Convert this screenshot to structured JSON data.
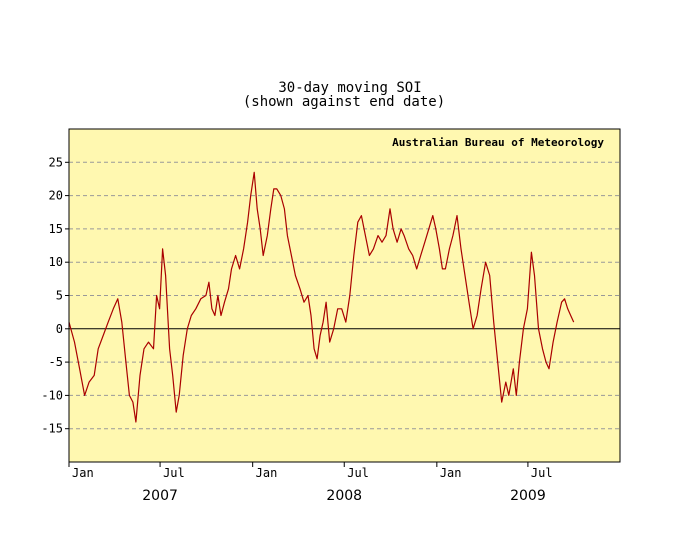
{
  "chart_data": {
    "type": "line",
    "title": "30-day moving SOI",
    "subtitle": "(shown against end date)",
    "credit": "Australian Bureau of Meteorology",
    "xlabel": "",
    "ylabel": "",
    "x_range": [
      "2007-01-01",
      "2009-12-31"
    ],
    "ylim": [
      -20,
      30
    ],
    "y_ticks": [
      25,
      20,
      15,
      10,
      5,
      0,
      -5,
      -10,
      -15
    ],
    "x_ticks": [
      {
        "label": "Jan",
        "date": "2007-01-01"
      },
      {
        "label": "Jul",
        "date": "2007-07-01"
      },
      {
        "label": "Jan",
        "date": "2008-01-01"
      },
      {
        "label": "Jul",
        "date": "2008-07-01"
      },
      {
        "label": "Jan",
        "date": "2009-01-01"
      },
      {
        "label": "Jul",
        "date": "2009-07-01"
      }
    ],
    "years": [
      {
        "label": "2007",
        "date": "2007-07-01"
      },
      {
        "label": "2008",
        "date": "2008-07-01"
      },
      {
        "label": "2009",
        "date": "2009-07-01"
      }
    ],
    "grid": true,
    "colors": {
      "plot_bg": "#FFF8B0",
      "line": "#AA0000",
      "grid": "#999999"
    },
    "series": [
      {
        "values": [
          [
            "2007-01-01",
            1
          ],
          [
            "2007-01-12",
            -2
          ],
          [
            "2007-01-22",
            -6
          ],
          [
            "2007-02-01",
            -10
          ],
          [
            "2007-02-10",
            -8
          ],
          [
            "2007-02-20",
            -7
          ],
          [
            "2007-02-28",
            -3
          ],
          [
            "2007-03-10",
            -1
          ],
          [
            "2007-03-20",
            1
          ],
          [
            "2007-03-30",
            3
          ],
          [
            "2007-04-08",
            4.5
          ],
          [
            "2007-04-16",
            1
          ],
          [
            "2007-04-24",
            -5
          ],
          [
            "2007-05-01",
            -10
          ],
          [
            "2007-05-08",
            -11
          ],
          [
            "2007-05-14",
            -14
          ],
          [
            "2007-05-22",
            -7
          ],
          [
            "2007-05-30",
            -3
          ],
          [
            "2007-06-08",
            -2
          ],
          [
            "2007-06-18",
            -3
          ],
          [
            "2007-06-24",
            5
          ],
          [
            "2007-06-30",
            3
          ],
          [
            "2007-07-06",
            12
          ],
          [
            "2007-07-12",
            8
          ],
          [
            "2007-07-20",
            -3
          ],
          [
            "2007-07-26",
            -7
          ],
          [
            "2007-08-02",
            -12.5
          ],
          [
            "2007-08-08",
            -10
          ],
          [
            "2007-08-16",
            -4
          ],
          [
            "2007-08-24",
            0
          ],
          [
            "2007-09-01",
            2
          ],
          [
            "2007-09-10",
            3
          ],
          [
            "2007-09-20",
            4.5
          ],
          [
            "2007-09-30",
            5
          ],
          [
            "2007-10-06",
            7
          ],
          [
            "2007-10-12",
            3
          ],
          [
            "2007-10-18",
            2
          ],
          [
            "2007-10-24",
            5
          ],
          [
            "2007-10-30",
            2
          ],
          [
            "2007-11-06",
            4
          ],
          [
            "2007-11-14",
            6
          ],
          [
            "2007-11-20",
            9
          ],
          [
            "2007-11-28",
            11
          ],
          [
            "2007-12-06",
            9
          ],
          [
            "2007-12-14",
            12
          ],
          [
            "2007-12-22",
            16
          ],
          [
            "2007-12-28",
            20
          ],
          [
            "2008-01-04",
            23.5
          ],
          [
            "2008-01-10",
            18
          ],
          [
            "2008-01-16",
            15
          ],
          [
            "2008-01-22",
            11
          ],
          [
            "2008-01-30",
            14
          ],
          [
            "2008-02-06",
            18
          ],
          [
            "2008-02-12",
            21
          ],
          [
            "2008-02-18",
            21
          ],
          [
            "2008-02-26",
            20
          ],
          [
            "2008-03-04",
            18
          ],
          [
            "2008-03-10",
            14
          ],
          [
            "2008-03-18",
            11
          ],
          [
            "2008-03-26",
            8
          ],
          [
            "2008-04-04",
            6
          ],
          [
            "2008-04-12",
            4
          ],
          [
            "2008-04-20",
            5
          ],
          [
            "2008-04-26",
            2
          ],
          [
            "2008-05-02",
            -3
          ],
          [
            "2008-05-08",
            -4.5
          ],
          [
            "2008-05-14",
            -1
          ],
          [
            "2008-05-20",
            1
          ],
          [
            "2008-05-26",
            4
          ],
          [
            "2008-06-02",
            -2
          ],
          [
            "2008-06-10",
            0
          ],
          [
            "2008-06-18",
            3
          ],
          [
            "2008-06-26",
            3
          ],
          [
            "2008-07-04",
            1
          ],
          [
            "2008-07-12",
            5
          ],
          [
            "2008-07-20",
            11
          ],
          [
            "2008-07-28",
            16
          ],
          [
            "2008-08-04",
            17
          ],
          [
            "2008-08-12",
            14
          ],
          [
            "2008-08-20",
            11
          ],
          [
            "2008-08-28",
            12
          ],
          [
            "2008-09-06",
            14
          ],
          [
            "2008-09-14",
            13
          ],
          [
            "2008-09-22",
            14
          ],
          [
            "2008-09-30",
            18
          ],
          [
            "2008-10-06",
            15
          ],
          [
            "2008-10-14",
            13
          ],
          [
            "2008-10-22",
            15
          ],
          [
            "2008-10-28",
            14
          ],
          [
            "2008-11-06",
            12
          ],
          [
            "2008-11-14",
            11
          ],
          [
            "2008-11-22",
            9
          ],
          [
            "2008-11-30",
            11
          ],
          [
            "2008-12-08",
            13
          ],
          [
            "2008-12-16",
            15
          ],
          [
            "2008-12-24",
            17
          ],
          [
            "2008-12-30",
            15
          ],
          [
            "2009-01-06",
            12
          ],
          [
            "2009-01-12",
            9
          ],
          [
            "2009-01-18",
            9
          ],
          [
            "2009-01-26",
            12
          ],
          [
            "2009-02-02",
            14
          ],
          [
            "2009-02-10",
            17
          ],
          [
            "2009-02-18",
            12
          ],
          [
            "2009-02-26",
            8
          ],
          [
            "2009-03-06",
            4
          ],
          [
            "2009-03-14",
            0
          ],
          [
            "2009-03-22",
            2
          ],
          [
            "2009-03-30",
            6
          ],
          [
            "2009-04-08",
            10
          ],
          [
            "2009-04-16",
            8
          ],
          [
            "2009-04-24",
            1
          ],
          [
            "2009-05-02",
            -5
          ],
          [
            "2009-05-10",
            -11
          ],
          [
            "2009-05-18",
            -8
          ],
          [
            "2009-05-24",
            -10
          ],
          [
            "2009-06-02",
            -6
          ],
          [
            "2009-06-08",
            -10
          ],
          [
            "2009-06-14",
            -5
          ],
          [
            "2009-06-22",
            0
          ],
          [
            "2009-06-30",
            3
          ],
          [
            "2009-07-08",
            11.5
          ],
          [
            "2009-07-14",
            8
          ],
          [
            "2009-07-22",
            0
          ],
          [
            "2009-07-30",
            -3
          ],
          [
            "2009-08-06",
            -5
          ],
          [
            "2009-08-12",
            -6
          ],
          [
            "2009-08-20",
            -2
          ],
          [
            "2009-08-28",
            1
          ],
          [
            "2009-09-06",
            4
          ],
          [
            "2009-09-12",
            4.5
          ],
          [
            "2009-09-18",
            3
          ],
          [
            "2009-09-24",
            2
          ],
          [
            "2009-09-30",
            1
          ]
        ]
      }
    ]
  }
}
